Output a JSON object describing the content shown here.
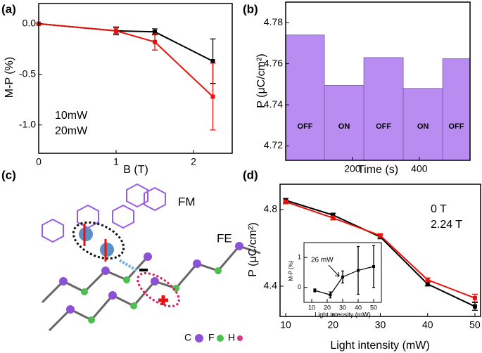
{
  "chart_data": [
    {
      "type": "line",
      "panel_label": "(a)",
      "xlabel": "B (T)",
      "ylabel": "M-P (%)",
      "x": [
        0,
        1,
        1.5,
        2.25
      ],
      "series": [
        {
          "name": "10mW",
          "color": "#000000",
          "values": [
            0,
            -0.07,
            -0.08,
            -0.37
          ],
          "errors": [
            0,
            0.03,
            0.03,
            0.22
          ]
        },
        {
          "name": "20mW",
          "color": "#e8120c",
          "values": [
            0,
            -0.07,
            -0.18,
            -0.72
          ],
          "errors": [
            0,
            0.04,
            0.08,
            0.33
          ]
        }
      ],
      "xlim": [
        0,
        2.5
      ],
      "ylim": [
        -1.28,
        0.2
      ],
      "xticks": [
        0,
        1,
        2
      ],
      "yticks": [
        {
          "value": 0,
          "label": "0.0"
        },
        -0.5,
        {
          "value": -1,
          "label": "-1.0"
        }
      ],
      "legend": "lower left"
    },
    {
      "type": "histogram",
      "panel_label": "(b)",
      "xlabel": "Time (s)",
      "ylabel": "P (μC/cm²)",
      "bins": [
        0,
        116,
        234,
        352,
        470,
        552
      ],
      "values": [
        4.774,
        4.7495,
        4.763,
        4.748,
        4.7625
      ],
      "bar_labels": [
        "OFF",
        "ON",
        "OFF",
        "ON",
        "OFF"
      ],
      "label_colors": [
        "#000000",
        "#e8120c",
        "#000000",
        "#e8120c",
        "#000000"
      ],
      "color": "#b88cf0",
      "xlim": [
        0,
        552
      ],
      "ylim": [
        4.713,
        4.79
      ],
      "xticks": [
        200,
        400
      ],
      "yticks": [
        4.72,
        4.74,
        4.76,
        4.78
      ]
    },
    {
      "type": "line",
      "panel_label": "(d)",
      "xlabel": "Light intensity (mW)",
      "ylabel": "P (μC/cm²)",
      "x": [
        10,
        20,
        30,
        40,
        50
      ],
      "series": [
        {
          "name": "0 T",
          "color": "#000000",
          "values": [
            4.848,
            4.771,
            4.657,
            4.411,
            4.294
          ],
          "errors": [
            0.01,
            0.01,
            0.01,
            0.01,
            0.02
          ]
        },
        {
          "name": "2.24 T",
          "color": "#e8120c",
          "values": [
            4.84,
            4.756,
            4.664,
            4.433,
            4.338
          ],
          "errors": [
            0.01,
            0.01,
            0.01,
            0.01,
            0.02
          ]
        }
      ],
      "xlim": [
        8.8,
        51.2
      ],
      "ylim": [
        4.242,
        4.932
      ],
      "xticks": [
        10,
        20,
        30,
        40,
        50
      ],
      "yticks": [
        4.4,
        4.8
      ],
      "legend": "upper right"
    },
    {
      "type": "line",
      "xlabel": "Light intensity (mW)",
      "ylabel": "M-P (%)",
      "annotation": "26 mW",
      "x": [
        12,
        22,
        30,
        40,
        50
      ],
      "series": [
        {
          "color": "#000000",
          "values": [
            -0.1,
            -0.25,
            0.35,
            0.57,
            0.7
          ],
          "errors": [
            0.05,
            0.1,
            0.2,
            0.8,
            0.7
          ]
        }
      ],
      "xlim": [
        5,
        55
      ],
      "ylim": [
        -0.5,
        1.5
      ],
      "xticks": [
        10,
        20,
        30,
        40,
        50
      ],
      "yticks": [
        0,
        1
      ]
    }
  ],
  "illustration": {
    "panel_label": "(c)",
    "labels": [
      "FM",
      "FE"
    ],
    "legend": [
      "C",
      "F",
      "H"
    ]
  }
}
